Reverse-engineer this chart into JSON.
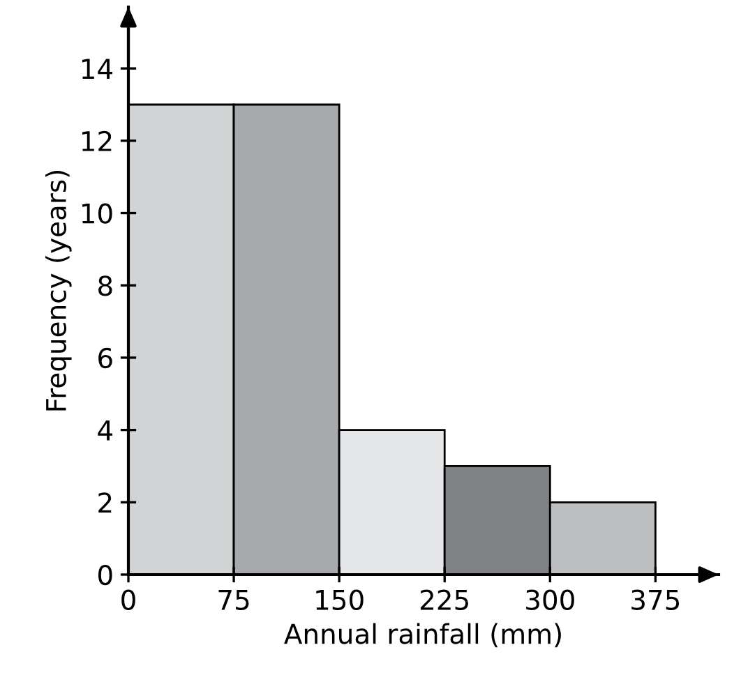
{
  "chart_data": {
    "type": "histogram",
    "xlabel": "Annual rainfall (mm)",
    "ylabel": "Frequency (years)",
    "bins": [
      0,
      75,
      150,
      225,
      300,
      375
    ],
    "values": [
      13,
      13,
      4,
      3,
      2
    ],
    "colors": [
      "#d1d3d4",
      "#a7a9ac",
      "#e6e7e8",
      "#808285",
      "#bcbec0"
    ],
    "xlim": [
      0,
      420
    ],
    "ylim": [
      0,
      15.7
    ],
    "xticks": [
      0,
      75,
      150,
      225,
      300,
      375
    ],
    "yticks": [
      0,
      2,
      4,
      6,
      8,
      10,
      12,
      14
    ],
    "grid": false,
    "legend": false
  }
}
